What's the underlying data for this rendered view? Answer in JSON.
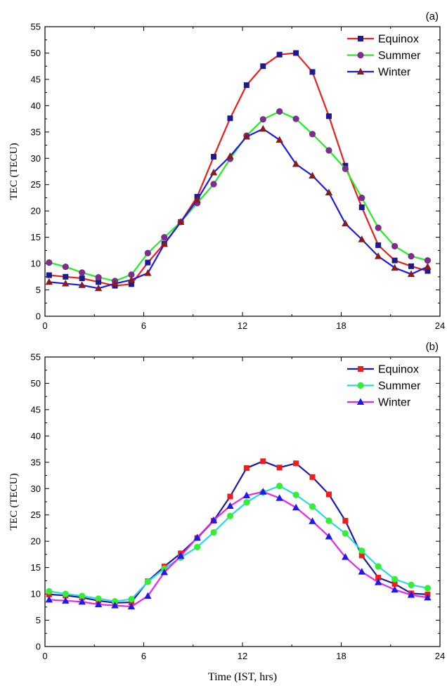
{
  "chart_data": [
    {
      "type": "line",
      "panel_label": "(a)",
      "ylabel": "TEC (TECU)",
      "xlabel": "",
      "xlim": [
        0,
        24
      ],
      "ylim": [
        0,
        55
      ],
      "xticks": [
        0,
        6,
        12,
        18,
        24
      ],
      "yticks": [
        0,
        5,
        10,
        15,
        20,
        25,
        30,
        35,
        40,
        45,
        50,
        55
      ],
      "legend_position": "top-right",
      "x": [
        0.25,
        1.25,
        2.25,
        3.25,
        4.25,
        5.25,
        6.25,
        7.25,
        8.25,
        9.25,
        10.25,
        11.25,
        12.25,
        13.25,
        14.25,
        15.25,
        16.25,
        17.25,
        18.25,
        19.25,
        20.25,
        21.25,
        22.25,
        23.25
      ],
      "series": [
        {
          "name": "Equinox",
          "line_color": "#ee1c1c",
          "marker_color": "#1b1b8f",
          "marker": "square",
          "values": [
            7.8,
            7.5,
            7.2,
            6.5,
            5.8,
            6.1,
            10.2,
            13.8,
            17.9,
            22.7,
            30.3,
            37.6,
            43.9,
            47.5,
            49.7,
            50.0,
            46.4,
            38.0,
            28.6,
            20.7,
            13.5,
            10.6,
            9.5,
            8.6
          ]
        },
        {
          "name": "Summer",
          "line_color": "#22ee22",
          "marker_color": "#7d2d8c",
          "marker": "circle",
          "values": [
            10.2,
            9.4,
            8.3,
            7.4,
            6.7,
            7.9,
            12.0,
            15.0,
            17.9,
            21.5,
            25.1,
            29.9,
            34.3,
            37.4,
            38.9,
            37.5,
            34.6,
            31.5,
            28.0,
            22.5,
            16.8,
            13.3,
            11.4,
            10.6
          ]
        },
        {
          "name": "Winter",
          "line_color": "#1a1aee",
          "marker_color": "#8b1a1a",
          "marker": "triangle",
          "values": [
            6.5,
            6.2,
            5.9,
            5.3,
            6.2,
            6.9,
            8.2,
            13.7,
            17.9,
            22.1,
            27.3,
            30.4,
            34.1,
            35.6,
            33.5,
            28.9,
            26.7,
            23.5,
            17.6,
            14.6,
            11.4,
            9.2,
            8.0,
            9.4
          ]
        }
      ]
    },
    {
      "type": "line",
      "panel_label": "(b)",
      "ylabel": "TEC (TECU)",
      "xlabel": "Time (IST, hrs)",
      "xlim": [
        0,
        24
      ],
      "ylim": [
        0,
        55
      ],
      "xticks": [
        0,
        6,
        12,
        18,
        24
      ],
      "yticks": [
        0,
        5,
        10,
        15,
        20,
        25,
        30,
        35,
        40,
        45,
        50,
        55
      ],
      "legend_position": "top-right",
      "x": [
        0.25,
        1.25,
        2.25,
        3.25,
        4.25,
        5.25,
        6.25,
        7.25,
        8.25,
        9.25,
        10.25,
        11.25,
        12.25,
        13.25,
        14.25,
        15.25,
        16.25,
        17.25,
        18.25,
        19.25,
        20.25,
        21.25,
        22.25,
        23.25
      ],
      "series": [
        {
          "name": "Equinox",
          "line_color": "#1a1aa8",
          "marker_color": "#ee1c1c",
          "marker": "square",
          "values": [
            9.9,
            9.7,
            9.3,
            8.7,
            8.3,
            8.4,
            12.4,
            15.2,
            17.7,
            20.6,
            23.9,
            28.5,
            33.9,
            35.2,
            34.0,
            34.8,
            32.2,
            28.9,
            23.9,
            17.3,
            13.1,
            11.9,
            10.1,
            9.9
          ]
        },
        {
          "name": "Summer",
          "line_color": "#22dddd",
          "marker_color": "#33ee33",
          "marker": "circle",
          "values": [
            10.5,
            10.0,
            9.6,
            9.1,
            8.6,
            9.0,
            12.3,
            14.8,
            16.9,
            18.9,
            21.7,
            24.8,
            27.4,
            29.3,
            30.5,
            28.8,
            26.6,
            23.9,
            21.5,
            18.2,
            15.2,
            12.8,
            11.7,
            11.1
          ]
        },
        {
          "name": "Winter",
          "line_color": "#ee22ee",
          "marker_color": "#1a1aee",
          "marker": "triangle",
          "values": [
            8.9,
            8.7,
            8.5,
            8.0,
            7.8,
            7.6,
            9.6,
            14.1,
            17.2,
            20.7,
            24.0,
            26.7,
            28.7,
            29.4,
            28.2,
            26.4,
            23.8,
            20.9,
            17.0,
            14.2,
            12.2,
            10.8,
            9.8,
            9.3
          ]
        }
      ]
    }
  ]
}
